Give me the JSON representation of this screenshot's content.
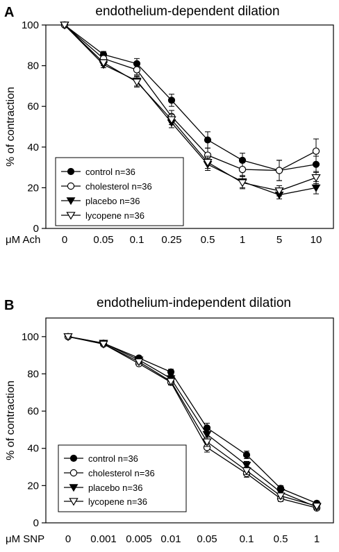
{
  "chart_data": [
    {
      "type": "line",
      "panel_label": "A",
      "title": "endothelium-dependent dilation",
      "xlabel": "μM Ach",
      "ylabel": "% of contraction",
      "categories": [
        "0",
        "0.05",
        "0.1",
        "0.25",
        "0.5",
        "1",
        "5",
        "10"
      ],
      "ylim": [
        0,
        100
      ],
      "yticks": [
        "0",
        "20",
        "40",
        "60",
        "80",
        "100"
      ],
      "legend_position": "bottom-left",
      "grid": false,
      "series": [
        {
          "name": "control n=36",
          "marker": "filled-circle",
          "values": [
            100,
            85.5,
            81,
            63,
            43.5,
            33.5,
            28.5,
            31.5
          ],
          "errors": [
            0,
            1.5,
            2.5,
            3,
            4,
            3.5,
            5,
            4
          ]
        },
        {
          "name": "cholesterol n=36",
          "marker": "open-circle",
          "values": [
            100,
            83.5,
            78,
            55,
            36,
            29,
            28.5,
            38
          ],
          "errors": [
            0,
            1.5,
            2.5,
            3,
            3.5,
            3.5,
            5,
            6
          ]
        },
        {
          "name": "placebo n=36",
          "marker": "filled-triangle",
          "values": [
            100,
            80.5,
            72.5,
            52,
            31.5,
            23,
            16.5,
            20
          ],
          "errors": [
            0,
            1.5,
            2.5,
            2.5,
            3,
            3,
            2,
            3
          ]
        },
        {
          "name": "lycopene n=36",
          "marker": "open-triangle",
          "values": [
            100,
            81.5,
            72,
            53.5,
            32.5,
            22.5,
            18.5,
            25
          ],
          "errors": [
            0,
            1.5,
            2.5,
            2.5,
            3,
            3,
            2.5,
            3
          ]
        }
      ]
    },
    {
      "type": "line",
      "panel_label": "B",
      "title": "endothelium-independent dilation",
      "xlabel": "μM SNP",
      "ylabel": "% of contraction",
      "categories": [
        "0",
        "0.001",
        "0.005",
        "0.01",
        "0.05",
        "0.1",
        "0.5",
        "1"
      ],
      "ylim": [
        0,
        110
      ],
      "yticks": [
        "0",
        "20",
        "40",
        "60",
        "80",
        "100"
      ],
      "legend_position": "bottom-left",
      "grid": false,
      "series": [
        {
          "name": "control n=36",
          "marker": "filled-circle",
          "values": [
            100,
            96.5,
            88.5,
            81,
            51,
            36.5,
            18.5,
            10.5
          ],
          "errors": [
            0,
            0.8,
            1.2,
            1.5,
            2.5,
            2,
            1.5,
            1.2
          ]
        },
        {
          "name": "cholesterol n=36",
          "marker": "open-circle",
          "values": [
            100,
            96,
            85.5,
            75.5,
            40.5,
            26.5,
            13,
            8
          ],
          "errors": [
            0,
            0.8,
            1.2,
            1.5,
            2.5,
            2,
            1.5,
            1.2
          ]
        },
        {
          "name": "placebo n=36",
          "marker": "filled-triangle",
          "values": [
            100,
            96.5,
            87.5,
            77.5,
            47.5,
            31,
            16.5,
            8.5
          ],
          "errors": [
            0,
            0.8,
            1.2,
            1.5,
            2.5,
            2,
            1.5,
            1.2
          ]
        },
        {
          "name": "lycopene n=36",
          "marker": "open-triangle",
          "values": [
            100,
            96,
            86.5,
            76,
            43.5,
            28,
            14.5,
            9
          ],
          "errors": [
            0,
            0.8,
            1.2,
            1.5,
            2.5,
            2,
            1.5,
            1.2
          ]
        }
      ]
    }
  ]
}
